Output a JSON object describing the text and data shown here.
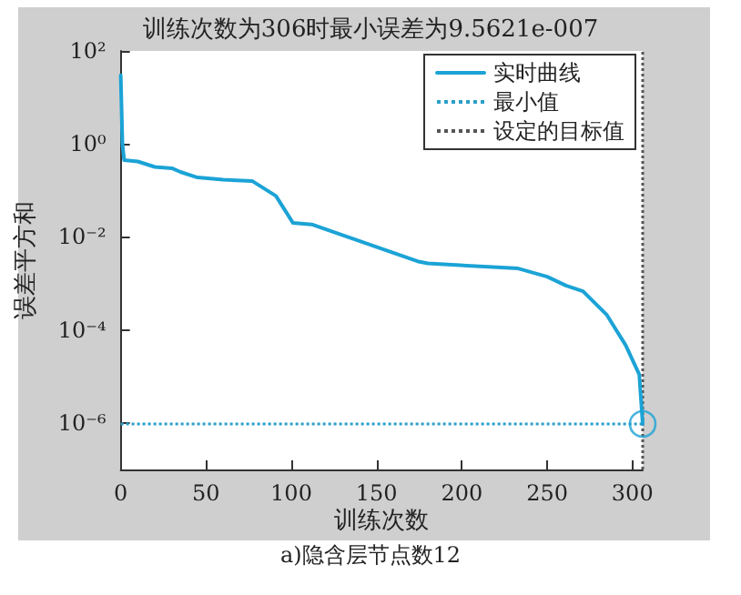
{
  "chart_data": {
    "type": "line",
    "title": "训练次数为306时最小误差为9.5621e-007",
    "xlabel": "训练次数",
    "ylabel": "误差平方和",
    "annotations": [
      "a)隐含层节点数12"
    ],
    "log": "y",
    "x": [
      0,
      1,
      2,
      10,
      20,
      30,
      35,
      45,
      60,
      77,
      91,
      101,
      112,
      174,
      180,
      233,
      250,
      261,
      271,
      285,
      296,
      304,
      306
    ],
    "series": [
      {
        "name": "实时曲线",
        "color": "#1ba3d6",
        "values": [
          30,
          1,
          0.45,
          0.42,
          0.32,
          0.3,
          0.25,
          0.19,
          0.17,
          0.16,
          0.076,
          0.02,
          0.0186,
          0.003,
          0.0027,
          0.0021,
          0.0014,
          0.0009,
          0.00068,
          0.00021,
          4.7e-05,
          1.1e-05,
          9.5621e-07
        ]
      },
      {
        "type": "scatter",
        "color": "#1ba3d6",
        "marker": "circle",
        "x": [
          306
        ],
        "values": [
          9.5621e-07
        ]
      }
    ],
    "ref_lines": [
      {
        "axis": "y",
        "value": 9.5621e-07,
        "label": "最小值",
        "color": "#2a9fc9",
        "line_style": "dotted"
      },
      {
        "axis": "x",
        "value": 306,
        "label": "设定的目标值",
        "color": "#555555",
        "line_style": "dotted"
      }
    ],
    "xlim": [
      0,
      306
    ],
    "xticks": [
      0,
      50,
      100,
      150,
      200,
      250,
      300
    ],
    "ylim": [
      1e-07,
      100
    ],
    "yticks": [
      {
        "value": 100,
        "label": "10²"
      },
      {
        "value": 1,
        "label": "10⁰"
      },
      {
        "value": 0.01,
        "label": "10⁻²"
      },
      {
        "value": 0.0001,
        "label": "10⁻⁴"
      },
      {
        "value": 1e-06,
        "label": "10⁻⁶"
      }
    ],
    "grid": false,
    "legend": "top right",
    "line_style": "solid",
    "marker": "none"
  }
}
